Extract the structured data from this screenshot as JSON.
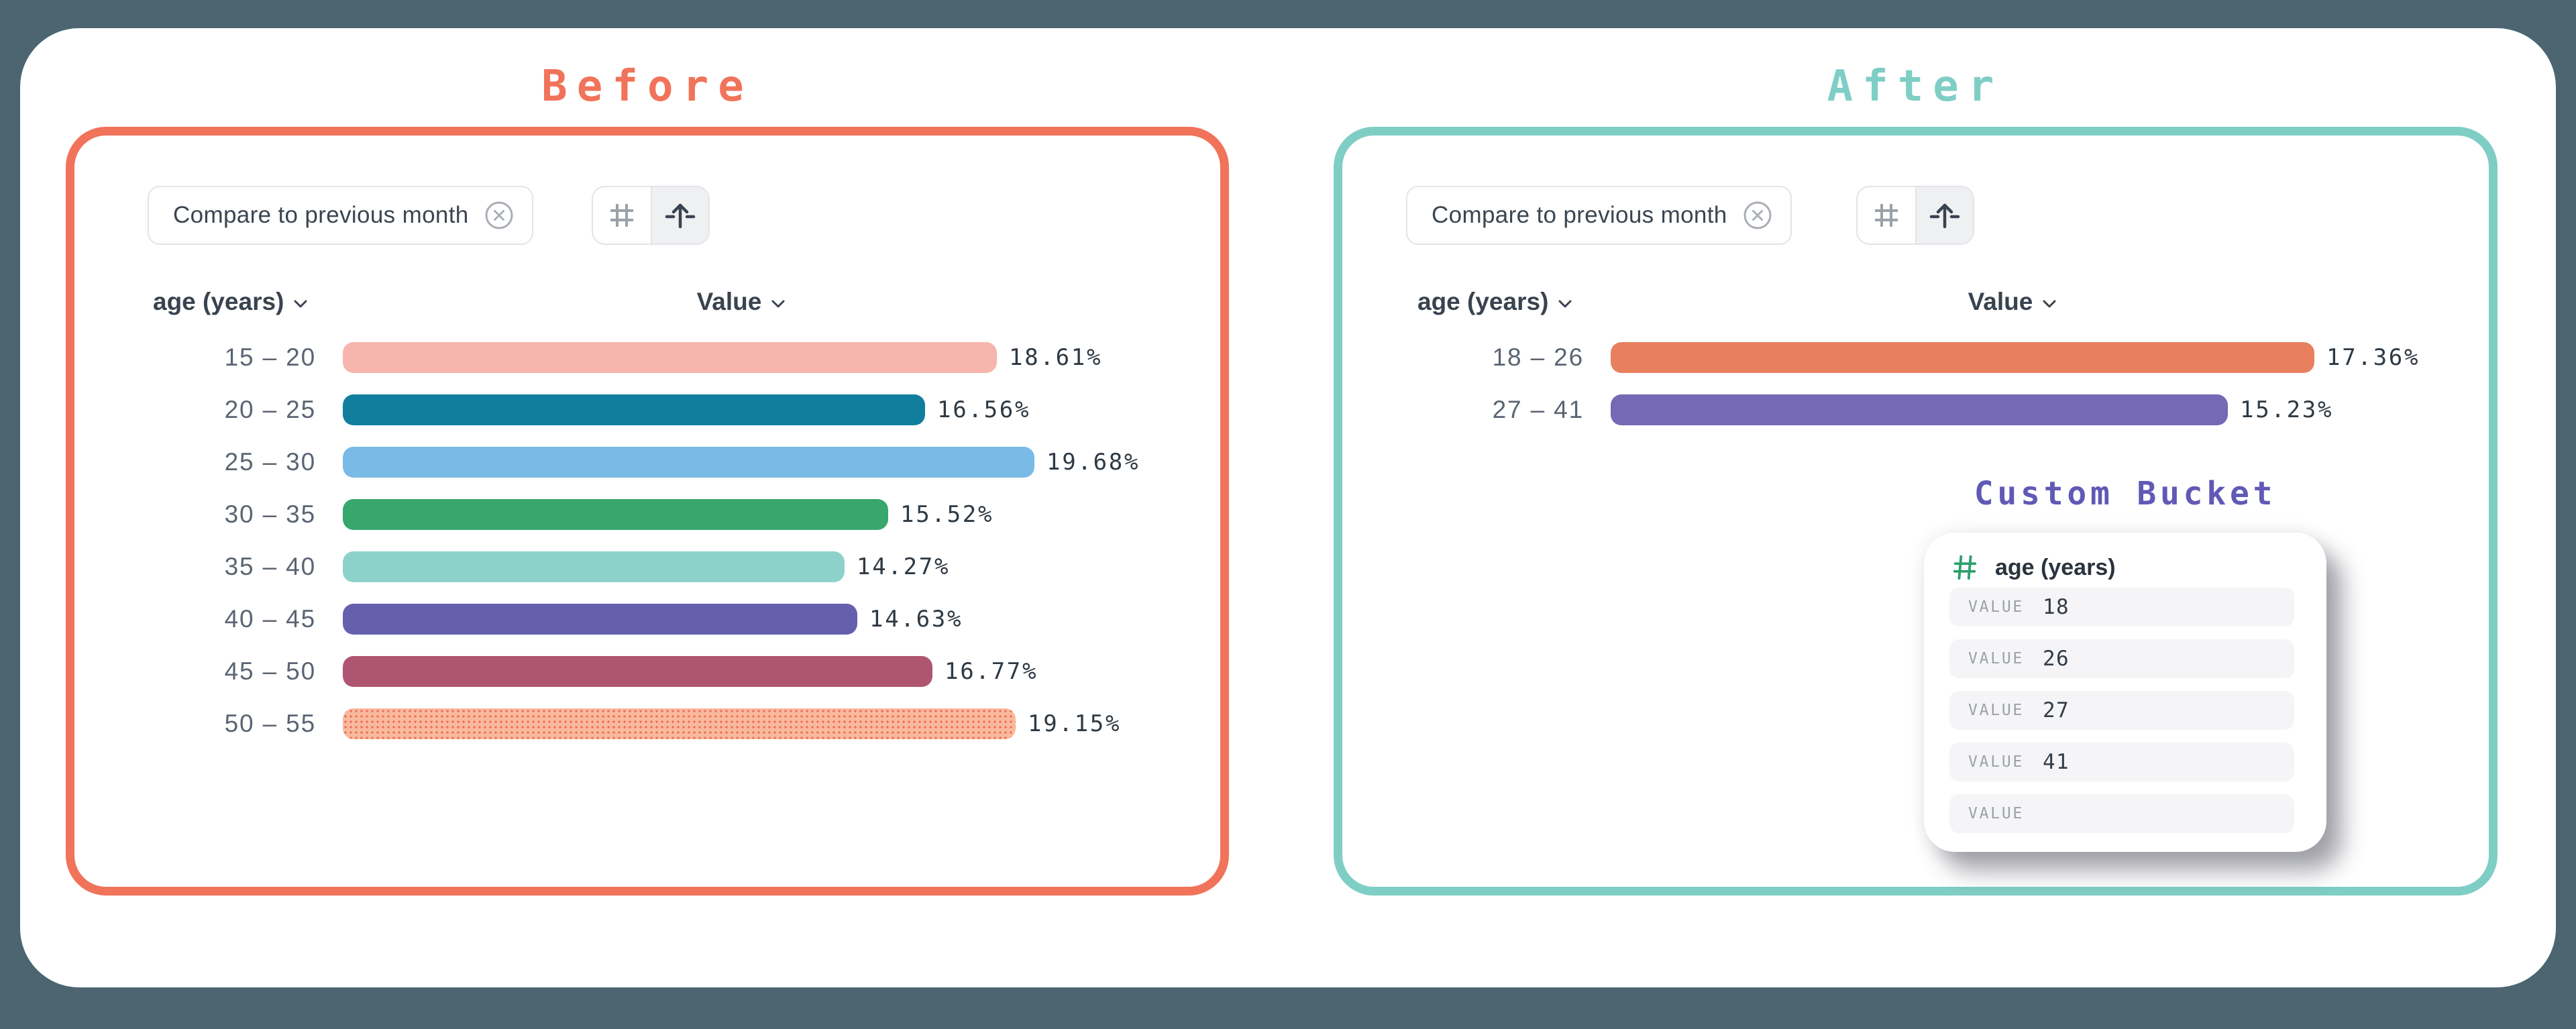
{
  "page": {
    "background_color": "#4C6570",
    "card_color": "#FFFFFF"
  },
  "panels": [
    {
      "id": "before",
      "title": "Before",
      "accent_color": "#F0735A",
      "toolbar": {
        "filter_chip": {
          "label": "Compare to previous month",
          "remove_icon": "circle-x-icon"
        },
        "view_toggle": {
          "buttons": [
            {
              "icon": "hash-grid-icon",
              "active": false
            },
            {
              "icon": "raise-arrow-icon",
              "active": true
            }
          ]
        }
      },
      "columns": {
        "dimension": "age (years)",
        "measure": "Value"
      },
      "rows": [
        {
          "bucket": "15 – 20",
          "value": 18.61,
          "color": "#F7B6AD",
          "pattern": "solid"
        },
        {
          "bucket": "20 – 25",
          "value": 16.56,
          "color": "#117E9E",
          "pattern": "solid"
        },
        {
          "bucket": "25 – 30",
          "value": 19.68,
          "color": "#79BAE7",
          "pattern": "solid"
        },
        {
          "bucket": "30 – 35",
          "value": 15.52,
          "color": "#37A76D",
          "pattern": "solid"
        },
        {
          "bucket": "35 – 40",
          "value": 14.27,
          "color": "#8DD2CA",
          "pattern": "solid"
        },
        {
          "bucket": "40 – 45",
          "value": 14.63,
          "color": "#6560AE",
          "pattern": "solid"
        },
        {
          "bucket": "45 – 50",
          "value": 16.77,
          "color": "#B05571",
          "pattern": "solid"
        },
        {
          "bucket": "50 – 55",
          "value": 19.15,
          "color": "#F9B99E",
          "pattern": "dotted",
          "dot_color": "#EE6B50"
        }
      ]
    },
    {
      "id": "after",
      "title": "After",
      "accent_color": "#7FCEC5",
      "toolbar": {
        "filter_chip": {
          "label": "Compare to previous month",
          "remove_icon": "circle-x-icon"
        },
        "view_toggle": {
          "buttons": [
            {
              "icon": "hash-grid-icon",
              "active": false
            },
            {
              "icon": "raise-arrow-icon",
              "active": true
            }
          ]
        }
      },
      "columns": {
        "dimension": "age (years)",
        "measure": "Value"
      },
      "rows": [
        {
          "bucket": "18 – 26",
          "value": 17.36,
          "color": "#E8805F",
          "pattern": "solid"
        },
        {
          "bucket": "27 – 41",
          "value": 15.23,
          "color": "#7568B4",
          "pattern": "solid"
        }
      ]
    }
  ],
  "custom_bucket": {
    "title": "Custom Bucket",
    "title_color": "#6159B5",
    "field": {
      "icon": "hash-icon",
      "icon_color": "#2BA06C",
      "name": "age (years)"
    },
    "value_rows": [
      {
        "label": "VALUE",
        "value": "18"
      },
      {
        "label": "VALUE",
        "value": "26"
      },
      {
        "label": "VALUE",
        "value": "27"
      },
      {
        "label": "VALUE",
        "value": "41"
      },
      {
        "label": "VALUE",
        "value": ""
      }
    ]
  },
  "chart_data": [
    {
      "type": "bar",
      "orientation": "horizontal",
      "title": "Before",
      "categories": [
        "15 – 20",
        "20 – 25",
        "25 – 30",
        "30 – 35",
        "35 – 40",
        "40 – 45",
        "45 – 50",
        "50 – 55"
      ],
      "values": [
        18.61,
        16.56,
        19.68,
        15.52,
        14.27,
        14.63,
        16.77,
        19.15
      ],
      "value_format": "percent",
      "xlabel": "Value",
      "ylabel": "age (years)",
      "xlim": [
        0,
        19.68
      ],
      "grid": false,
      "bar_colors": [
        "#F7B6AD",
        "#117E9E",
        "#79BAE7",
        "#37A76D",
        "#8DD2CA",
        "#6560AE",
        "#B05571",
        "#F9B99E"
      ]
    },
    {
      "type": "bar",
      "orientation": "horizontal",
      "title": "After",
      "categories": [
        "18 – 26",
        "27 – 41"
      ],
      "values": [
        17.36,
        15.23
      ],
      "value_format": "percent",
      "xlabel": "Value",
      "ylabel": "age (years)",
      "xlim": [
        0,
        17.36
      ],
      "grid": false,
      "bar_colors": [
        "#E8805F",
        "#7568B4"
      ]
    }
  ]
}
